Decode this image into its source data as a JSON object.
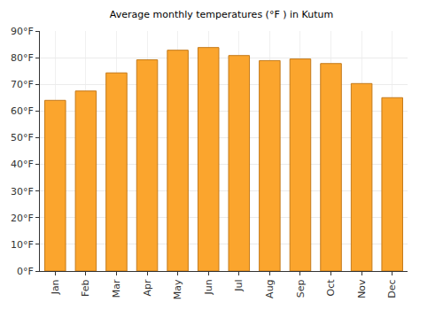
{
  "chart_data": {
    "type": "bar",
    "title": "Average monthly temperatures (°F ) in Kutum",
    "categories": [
      "Jan",
      "Feb",
      "Mar",
      "Apr",
      "May",
      "Jun",
      "Jul",
      "Aug",
      "Sep",
      "Oct",
      "Nov",
      "Dec"
    ],
    "values": [
      64.0,
      67.5,
      74.3,
      79.2,
      82.8,
      83.8,
      80.8,
      78.9,
      79.5,
      77.8,
      70.3,
      65.0
    ],
    "color": "#fba52d",
    "ylim": [
      0,
      90
    ],
    "yticks": [
      {
        "value": 0,
        "label": "0°F"
      },
      {
        "value": 10,
        "label": "10°F"
      },
      {
        "value": 20,
        "label": "20°F"
      },
      {
        "value": 30,
        "label": "30°F"
      },
      {
        "value": 40,
        "label": "40°F"
      },
      {
        "value": 50,
        "label": "50°F"
      },
      {
        "value": 60,
        "label": "60°F"
      },
      {
        "value": 70,
        "label": "70°F"
      },
      {
        "value": 80,
        "label": "80°F"
      },
      {
        "value": 90,
        "label": "90°F"
      }
    ],
    "grid": true
  }
}
